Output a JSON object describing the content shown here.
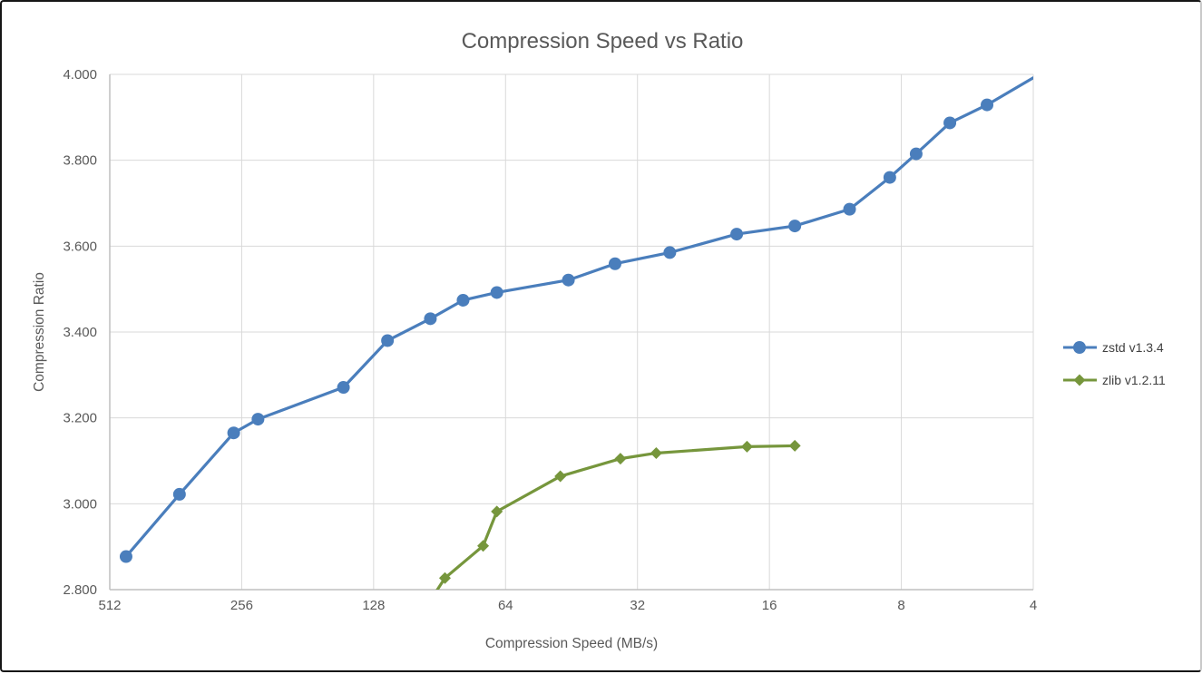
{
  "chart_data": {
    "type": "line",
    "title": "Compression Speed vs Ratio",
    "xlabel": "Compression Speed (MB/s)",
    "ylabel": "Compression Ratio",
    "x_scale": "log2-reversed",
    "x_ticks": [
      512,
      256,
      128,
      64,
      32,
      16,
      8,
      4
    ],
    "y_ticks": [
      2.8,
      3.0,
      3.2,
      3.4,
      3.6,
      3.8,
      4.0
    ],
    "ylim": [
      2.8,
      4.0
    ],
    "grid": true,
    "legend_position": "right",
    "series": [
      {
        "name": "zstd v1.3.4",
        "color": "#4A7EBC",
        "marker": "circle",
        "points": [
          [
            470,
            2.877
          ],
          [
            355,
            3.022
          ],
          [
            267,
            3.165
          ],
          [
            235,
            3.197
          ],
          [
            150,
            3.271
          ],
          [
            119,
            3.38
          ],
          [
            95,
            3.431
          ],
          [
            80,
            3.474
          ],
          [
            67,
            3.492
          ],
          [
            46,
            3.521
          ],
          [
            36,
            3.559
          ],
          [
            27,
            3.585
          ],
          [
            19,
            3.628
          ],
          [
            14,
            3.647
          ],
          [
            10.5,
            3.686
          ],
          [
            8.5,
            3.76
          ],
          [
            7.4,
            3.815
          ],
          [
            6.2,
            3.887
          ],
          [
            5.1,
            3.929
          ],
          [
            4.0,
            3.992
          ]
        ]
      },
      {
        "name": "zlib v1.2.11",
        "color": "#76963C",
        "marker": "diamond",
        "points": [
          [
            100,
            2.74
          ],
          [
            88,
            2.827
          ],
          [
            72,
            2.902
          ],
          [
            67,
            2.982
          ],
          [
            48,
            3.064
          ],
          [
            35,
            3.105
          ],
          [
            29,
            3.118
          ],
          [
            18,
            3.133
          ],
          [
            14,
            3.135
          ]
        ]
      }
    ]
  },
  "styles": {
    "grid_color": "#D9D9D9",
    "axis_color": "#BFBFBF",
    "text_color": "#595959",
    "legend_text_color": "#404040",
    "background": "#FFFFFF",
    "frame_border": "#161616"
  }
}
